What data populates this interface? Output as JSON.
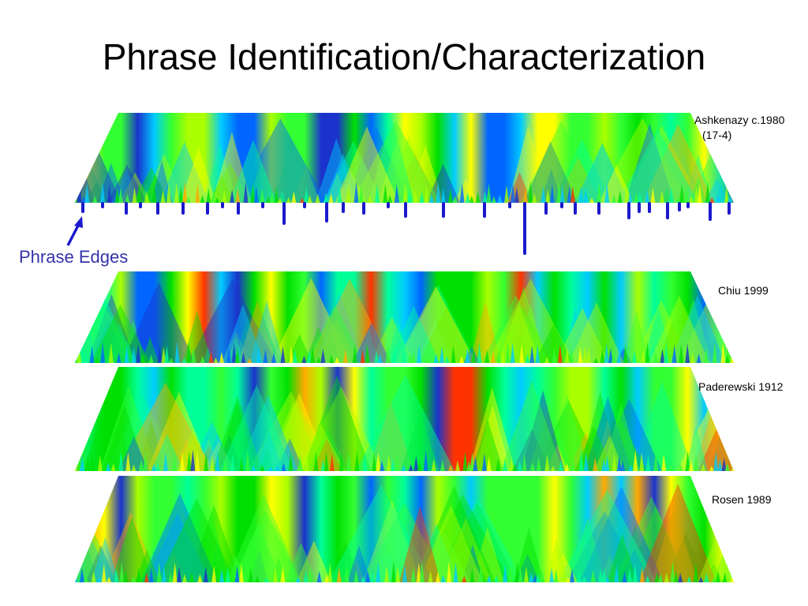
{
  "title": "Phrase Identification/Characterization",
  "annotation": "Phrase Edges",
  "plots": [
    {
      "label": "Ashkenazy c.1980",
      "sublabel": "(17-4)"
    },
    {
      "label": "Chiu 1999"
    },
    {
      "label": "Paderewski 1912"
    },
    {
      "label": "Rosen 1989"
    }
  ]
}
